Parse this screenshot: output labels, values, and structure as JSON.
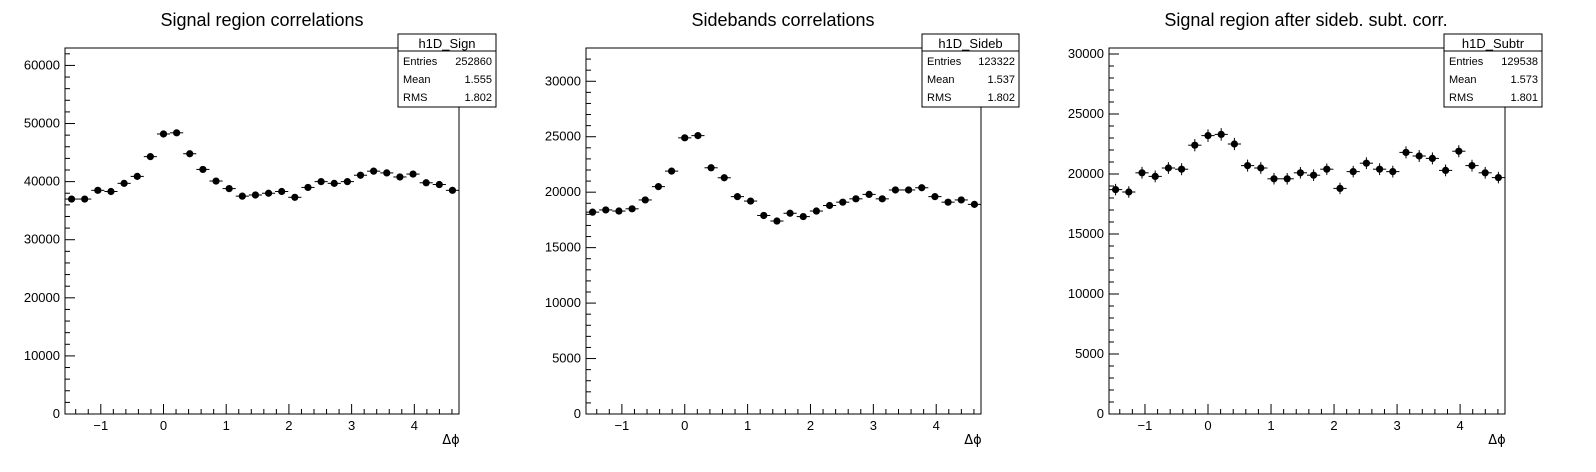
{
  "chart_data": [
    {
      "type": "scatter",
      "title": "Signal region correlations",
      "xlabel": "Δϕ",
      "ylabel": "",
      "xlim": [
        -1.5708,
        4.7124
      ],
      "ylim": [
        0,
        63000
      ],
      "x_ticks": [
        -1,
        0,
        1,
        2,
        3,
        4
      ],
      "x_tick_labels": [
        "−1",
        "0",
        "1",
        "2",
        "3",
        "4"
      ],
      "y_ticks": [
        0,
        10000,
        20000,
        30000,
        40000,
        50000,
        60000
      ],
      "y_tick_labels": [
        "0",
        "10000",
        "20000",
        "30000",
        "40000",
        "50000",
        "60000"
      ],
      "stats": {
        "name": "h1D_Sign",
        "rows": [
          [
            "Entries",
            "252860"
          ],
          [
            "Mean",
            "1.555"
          ],
          [
            "RMS",
            "1.802"
          ]
        ]
      },
      "x": [
        -1.4661,
        -1.2566,
        -1.0472,
        -0.8378,
        -0.6283,
        -0.4189,
        -0.2094,
        0.0,
        0.2094,
        0.4189,
        0.6283,
        0.8378,
        1.0472,
        1.2566,
        1.4661,
        1.6755,
        1.885,
        2.0944,
        2.3038,
        2.5133,
        2.7227,
        2.9322,
        3.1416,
        3.351,
        3.5605,
        3.7699,
        3.9794,
        4.1888,
        4.3982,
        4.6077
      ],
      "y": [
        37000,
        37000,
        38500,
        38300,
        39700,
        40900,
        44300,
        48200,
        48400,
        44800,
        42100,
        40100,
        38800,
        37500,
        37700,
        38000,
        38300,
        37300,
        39000,
        40000,
        39700,
        40000,
        41100,
        41800,
        41500,
        40800,
        41300,
        39800,
        39500,
        38500
      ],
      "yerr": [
        200,
        200,
        200,
        200,
        200,
        200,
        210,
        220,
        220,
        210,
        205,
        200,
        200,
        195,
        195,
        195,
        195,
        195,
        200,
        200,
        200,
        200,
        200,
        205,
        205,
        200,
        200,
        200,
        200,
        195
      ]
    },
    {
      "type": "scatter",
      "title": "Sidebands correlations",
      "xlabel": "Δϕ",
      "ylabel": "",
      "xlim": [
        -1.5708,
        4.7124
      ],
      "ylim": [
        0,
        33000
      ],
      "x_ticks": [
        -1,
        0,
        1,
        2,
        3,
        4
      ],
      "x_tick_labels": [
        "−1",
        "0",
        "1",
        "2",
        "3",
        "4"
      ],
      "y_ticks": [
        0,
        5000,
        10000,
        15000,
        20000,
        25000,
        30000
      ],
      "y_tick_labels": [
        "0",
        "5000",
        "10000",
        "15000",
        "20000",
        "25000",
        "30000"
      ],
      "stats": {
        "name": "h1D_Sideb",
        "rows": [
          [
            "Entries",
            "123322"
          ],
          [
            "Mean",
            "1.537"
          ],
          [
            "RMS",
            "1.802"
          ]
        ]
      },
      "x": [
        -1.4661,
        -1.2566,
        -1.0472,
        -0.8378,
        -0.6283,
        -0.4189,
        -0.2094,
        0.0,
        0.2094,
        0.4189,
        0.6283,
        0.8378,
        1.0472,
        1.2566,
        1.4661,
        1.6755,
        1.885,
        2.0944,
        2.3038,
        2.5133,
        2.7227,
        2.9322,
        3.1416,
        3.351,
        3.5605,
        3.7699,
        3.9794,
        4.1888,
        4.3982,
        4.6077
      ],
      "y": [
        18200,
        18400,
        18300,
        18500,
        19300,
        20500,
        21900,
        24900,
        25100,
        22200,
        21300,
        19600,
        19200,
        17900,
        17400,
        18100,
        17800,
        18300,
        18800,
        19100,
        19400,
        19800,
        19400,
        20200,
        20200,
        20400,
        19600,
        19100,
        19300,
        18900
      ],
      "yerr": [
        140,
        140,
        140,
        140,
        145,
        145,
        150,
        160,
        160,
        150,
        150,
        145,
        140,
        135,
        135,
        135,
        135,
        140,
        140,
        140,
        140,
        145,
        140,
        145,
        145,
        145,
        140,
        140,
        140,
        140
      ]
    },
    {
      "type": "scatter",
      "title": "Signal region after sideb. subt. corr.",
      "xlabel": "Δϕ",
      "ylabel": "",
      "xlim": [
        -1.5708,
        4.7124
      ],
      "ylim": [
        0,
        30500
      ],
      "x_ticks": [
        -1,
        0,
        1,
        2,
        3,
        4
      ],
      "x_tick_labels": [
        "−1",
        "0",
        "1",
        "2",
        "3",
        "4"
      ],
      "y_ticks": [
        0,
        5000,
        10000,
        15000,
        20000,
        25000,
        30000
      ],
      "y_tick_labels": [
        "0",
        "5000",
        "10000",
        "15000",
        "20000",
        "25000",
        "30000"
      ],
      "stats": {
        "name": "h1D_Subtr",
        "rows": [
          [
            "Entries",
            "129538"
          ],
          [
            "Mean",
            "1.573"
          ],
          [
            "RMS",
            "1.801"
          ]
        ]
      },
      "x": [
        -1.4661,
        -1.2566,
        -1.0472,
        -0.8378,
        -0.6283,
        -0.4189,
        -0.2094,
        0.0,
        0.2094,
        0.4189,
        0.6283,
        0.8378,
        1.0472,
        1.2566,
        1.4661,
        1.6755,
        1.885,
        2.0944,
        2.3038,
        2.5133,
        2.7227,
        2.9322,
        3.1416,
        3.351,
        3.5605,
        3.7699,
        3.9794,
        4.1888,
        4.3982,
        4.6077
      ],
      "y": [
        18700,
        18500,
        20100,
        19800,
        20500,
        20400,
        22400,
        23200,
        23300,
        22500,
        20700,
        20500,
        19600,
        19600,
        20100,
        19900,
        20400,
        18800,
        20200,
        20900,
        20400,
        20200,
        21800,
        21500,
        21300,
        20300,
        21900,
        20700,
        20100,
        19700
      ],
      "yerr": [
        480,
        480,
        490,
        490,
        490,
        500,
        510,
        520,
        520,
        510,
        500,
        490,
        480,
        480,
        480,
        480,
        480,
        480,
        480,
        490,
        490,
        490,
        500,
        500,
        500,
        490,
        500,
        490,
        490,
        480
      ]
    }
  ]
}
